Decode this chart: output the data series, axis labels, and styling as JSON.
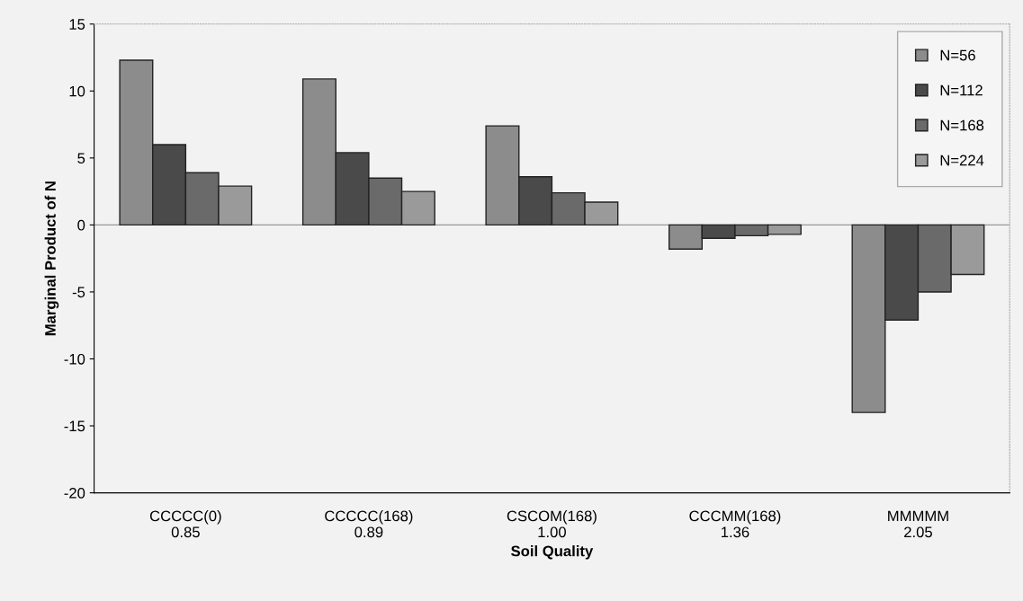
{
  "chart_data": {
    "type": "bar",
    "xlabel": "Soil Quality",
    "ylabel": "Marginal Product of N",
    "categories": [
      "CCCCC(0)\n0.85",
      "CCCCC(168)\n0.89",
      "CSCOM(168)\n1.00",
      "CCCMM(168)\n1.36",
      "MMMMM\n2.05"
    ],
    "series": [
      {
        "name": "N=56",
        "color": "#8c8c8c",
        "values": [
          12.3,
          10.9,
          7.4,
          -1.8,
          -14.0
        ]
      },
      {
        "name": "N=112",
        "color": "#4a4a4a",
        "values": [
          6.0,
          5.4,
          3.6,
          -1.0,
          -7.1
        ]
      },
      {
        "name": "N=168",
        "color": "#6a6a6a",
        "values": [
          3.9,
          3.5,
          2.4,
          -0.8,
          -5.0
        ]
      },
      {
        "name": "N=224",
        "color": "#9a9a9a",
        "values": [
          2.9,
          2.5,
          1.7,
          -0.7,
          -3.7
        ]
      }
    ],
    "ylim": [
      -20,
      15
    ],
    "yticks": [
      -20,
      -15,
      -10,
      -5,
      0,
      5,
      10,
      15
    ],
    "grid": false,
    "ref_lines": [
      {
        "axis": "y",
        "value": 0,
        "color": "#999999"
      }
    ],
    "legend": "top right"
  }
}
